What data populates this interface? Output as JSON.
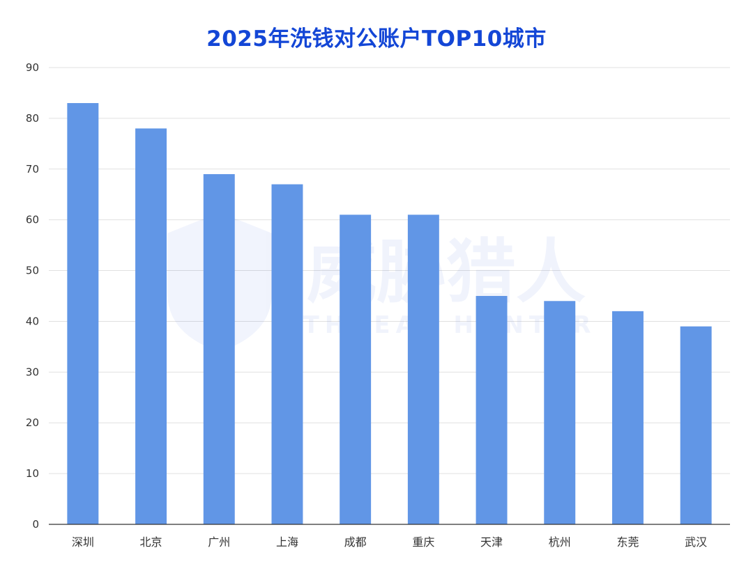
{
  "chart_data": {
    "type": "bar",
    "title": "2025年洗钱对公账户TOP10城市",
    "categories": [
      "深圳",
      "北京",
      "广州",
      "上海",
      "成都",
      "重庆",
      "天津",
      "杭州",
      "东莞",
      "武汉"
    ],
    "values": [
      83,
      78,
      69,
      67,
      61,
      61,
      45,
      44,
      42,
      39
    ],
    "ylim": [
      0,
      90
    ],
    "yticks": [
      0,
      10,
      20,
      30,
      40,
      50,
      60,
      70,
      80,
      90
    ],
    "xlabel": "",
    "ylabel": "",
    "grid": true,
    "bar_color": "#6196e6",
    "grid_color": "#e0e0e0",
    "axis_color": "#333333"
  },
  "watermark": {
    "cn": "威胁猎人",
    "en": "THREAT HUNTER"
  }
}
